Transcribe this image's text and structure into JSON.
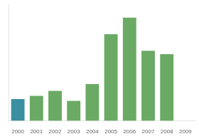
{
  "chart_data": {
    "type": "bar",
    "categories": [
      "2000",
      "2001",
      "2002",
      "2003",
      "2004",
      "2005",
      "2006",
      "2007",
      "2008",
      "2009"
    ],
    "values": [
      13,
      15,
      18,
      12,
      22,
      52,
      62,
      42,
      40,
      0
    ],
    "colors": [
      "#3a8fa0",
      "#6aaa64",
      "#6aaa64",
      "#6aaa64",
      "#6aaa64",
      "#6aaa64",
      "#6aaa64",
      "#6aaa64",
      "#6aaa64",
      "#6aaa64"
    ],
    "ylim": [
      0,
      70
    ],
    "grid": false,
    "tick_labels": "x"
  }
}
